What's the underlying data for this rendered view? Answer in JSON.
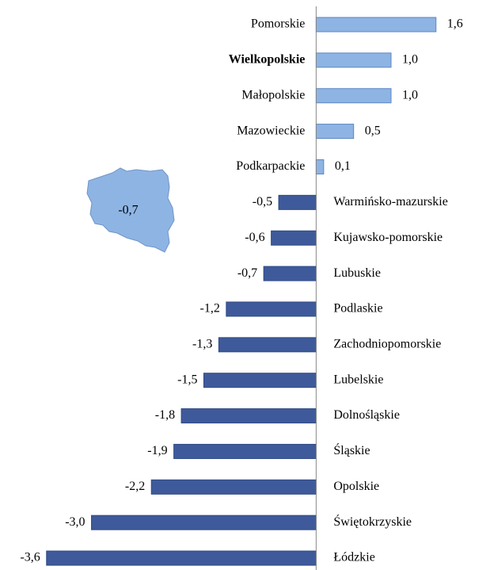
{
  "chart_data": {
    "type": "hbar",
    "categories": [
      "Pomorskie",
      "Wielkopolskie",
      "Małopolskie",
      "Mazowieckie",
      "Podkarpackie",
      "Warmińsko-mazurskie",
      "Kujawsko-pomorskie",
      "Lubuskie",
      "Podlaskie",
      "Zachodniopomorskie",
      "Lubelskie",
      "Dolnośląskie",
      "Śląskie",
      "Opolskie",
      "Świętokrzyskie",
      "Łódzkie"
    ],
    "values": [
      1.6,
      1.0,
      1.0,
      0.5,
      0.1,
      -0.5,
      -0.6,
      -0.7,
      -1.2,
      -1.3,
      -1.5,
      -1.8,
      -1.9,
      -2.2,
      -3.0,
      -3.6
    ],
    "value_labels": [
      "1,6",
      "1,0",
      "1,0",
      "0,5",
      "0,1",
      "-0,5",
      "-0,6",
      "-0,7",
      "-1,2",
      "-1,3",
      "-1,5",
      "-1,8",
      "-1,9",
      "-2,2",
      "-3,0",
      "-3,6"
    ],
    "color_positive": "#8eb4e3",
    "color_negative": "#3f5a9a",
    "highlight_index": 1,
    "xlim": [
      -4.2,
      2.3
    ],
    "annotation": "-0,7"
  }
}
